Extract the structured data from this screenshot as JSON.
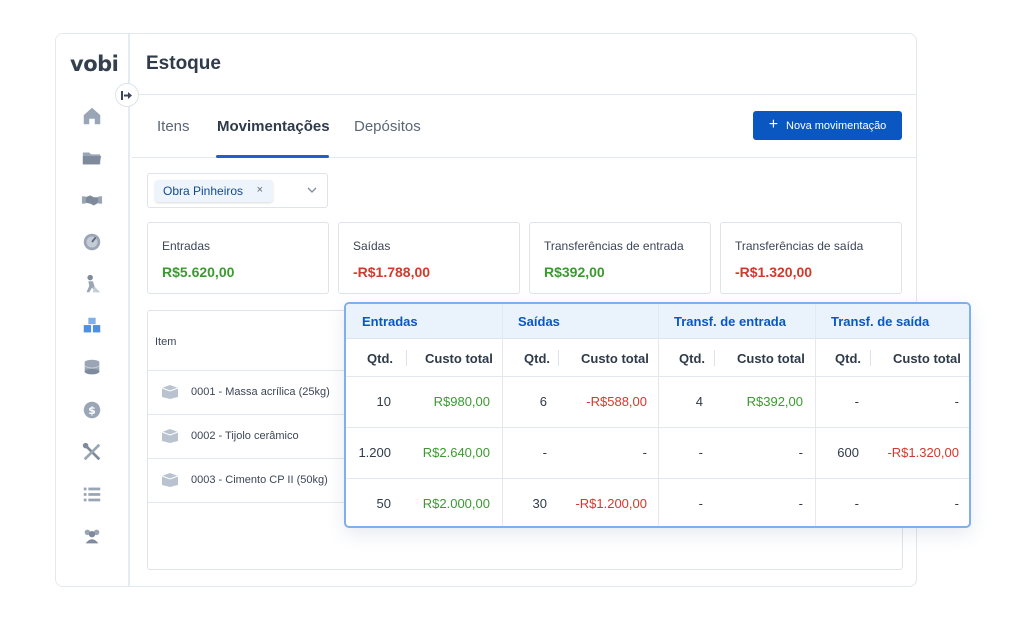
{
  "app": {
    "logo": "vobi"
  },
  "sidebar": {
    "items": [
      {
        "icon": "home-icon"
      },
      {
        "icon": "folder-icon"
      },
      {
        "icon": "handshake-icon"
      },
      {
        "icon": "gauge-icon"
      },
      {
        "icon": "worker-icon"
      },
      {
        "icon": "boxes-icon"
      },
      {
        "icon": "coins-icon"
      },
      {
        "icon": "dollar-icon"
      },
      {
        "icon": "tools-icon"
      },
      {
        "icon": "list-icon"
      },
      {
        "icon": "users-icon"
      }
    ]
  },
  "header": {
    "title": "Estoque"
  },
  "tabs": [
    {
      "label": "Itens",
      "active": false
    },
    {
      "label": "Movimentações",
      "active": true
    },
    {
      "label": "Depósitos",
      "active": false
    }
  ],
  "actions": {
    "new_movement": "Nova movimentação",
    "plus": "+"
  },
  "filter": {
    "chip": "Obra Pinheiros",
    "chip_remove": "×"
  },
  "summary_cards": [
    {
      "label": "Entradas",
      "value": "R$5.620,00",
      "tone": "positive"
    },
    {
      "label": "Saídas",
      "value": "-R$1.788,00",
      "tone": "negative"
    },
    {
      "label": "Transferências de entrada",
      "value": "R$392,00",
      "tone": "positive"
    },
    {
      "label": "Transferências de saída",
      "value": "-R$1.320,00",
      "tone": "negative"
    }
  ],
  "items_table": {
    "header": "Item",
    "rows": [
      {
        "name": "0001 - Massa acrílica (25kg)"
      },
      {
        "name": "0002 - Tijolo cerâmico"
      },
      {
        "name": "0003 - Cimento CP II (50kg)"
      }
    ]
  },
  "movements_table": {
    "groups": [
      "Entradas",
      "Saídas",
      "Transf. de entrada",
      "Transf. de saída"
    ],
    "subheaders": {
      "qty": "Qtd.",
      "cost": "Custo total"
    },
    "rows": [
      [
        "10",
        "R$980,00",
        "6",
        "-R$588,00",
        "4",
        "R$392,00",
        "-",
        "-"
      ],
      [
        "1.200",
        "R$2.640,00",
        "-",
        "-",
        "-",
        "-",
        "600",
        "-R$1.320,00"
      ],
      [
        "50",
        "R$2.000,00",
        "30",
        "-R$1.200,00",
        "-",
        "-",
        "-",
        "-"
      ]
    ]
  },
  "colors": {
    "primary": "#0b57c2",
    "positive": "#3b9a30",
    "negative": "#d5382c",
    "overlay_border": "#7fb0ee"
  }
}
